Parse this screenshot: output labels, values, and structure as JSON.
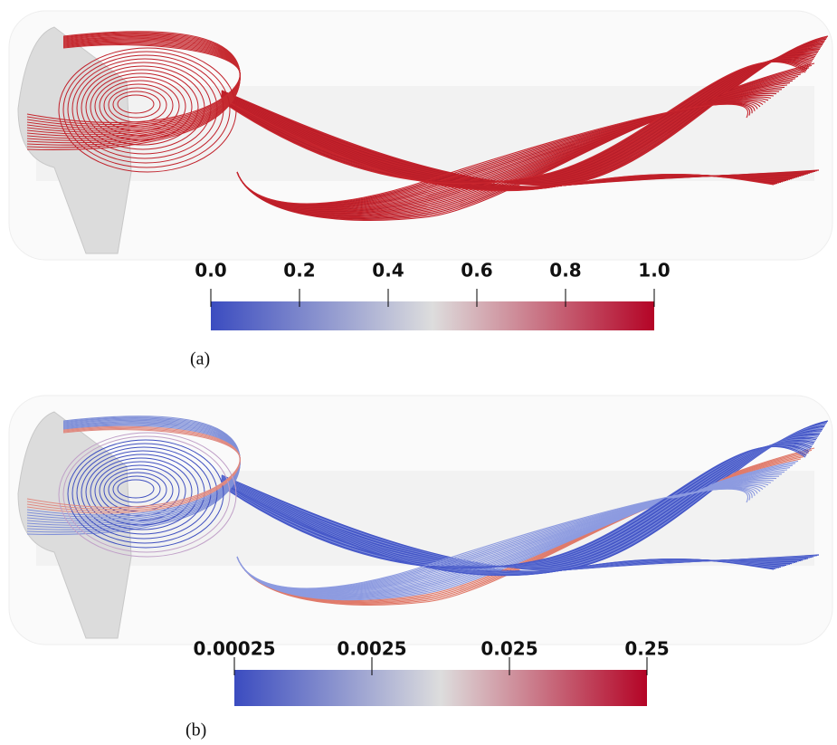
{
  "panels": [
    {
      "label": "(a)",
      "colorbar": {
        "lim": [
          0,
          1
        ],
        "scale": "linear",
        "colormap": [
          "#3b4cc0",
          "#dddddd",
          "#b40426"
        ],
        "ticks": [
          {
            "value": 0,
            "label": "0.0"
          },
          0.2,
          0.4,
          0.6,
          0.8,
          {
            "value": 1,
            "label": "1.0"
          }
        ]
      }
    },
    {
      "label": "(b)",
      "colorbar": {
        "lim": [
          0.00025,
          0.25
        ],
        "scale": "log",
        "colormap": [
          "#3b4cc0",
          "#dddddd",
          "#b40426"
        ],
        "ticks": [
          0.00025,
          0.0025,
          0.025,
          0.25
        ]
      }
    }
  ]
}
